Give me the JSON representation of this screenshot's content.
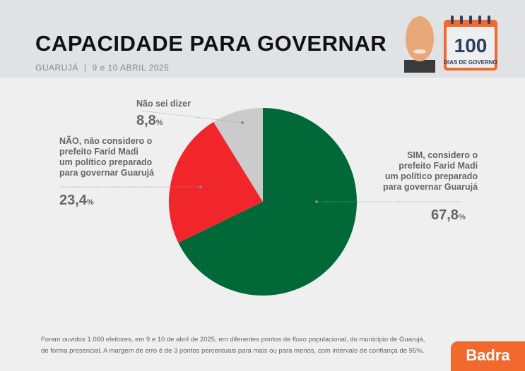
{
  "header": {
    "title": "CAPACIDADE PARA GOVERNAR",
    "location": "GUARUJÁ",
    "date": "9 e 10 ABRIL 2025",
    "badge_number": "100",
    "badge_text": "DIAS DE GOVERNO"
  },
  "chart_data": {
    "type": "pie",
    "start": "top",
    "direction": "clockwise",
    "slices": [
      {
        "label": "SIM, considero o prefeito Farid Madi um político preparado para governar Guarujá",
        "label_lines": [
          "SIM, considero o",
          "prefeito Farid Madi",
          "um político preparado",
          "para governar Guarujá"
        ],
        "value": 67.8,
        "display": "67,8",
        "color": "#006937"
      },
      {
        "label": "NÃO, não considero o prefeito Farid Madi um político preparado para governar Guarujá",
        "label_lines": [
          "NÃO, não considero o",
          "prefeito Farid Madi",
          "um político preparado",
          "para governar Guarujá"
        ],
        "value": 23.4,
        "display": "23,4",
        "color": "#f0262a"
      },
      {
        "label": "Não sei dizer",
        "label_lines": [
          "Não sei dizer"
        ],
        "value": 8.8,
        "display": "8,8",
        "color": "#cbcbcb"
      }
    ],
    "unit": "%"
  },
  "footer": {
    "note_lines": [
      "Foram ouvidos 1.060 eleitores, em 9 e 10 de abril de 2025, em diferentes pontos de fluxo populacional, do município de Guarujá,",
      "de forma presencial. A margem de erro é de 3 pontos percentuais para mais ou para menos, com intervalo de confiança de 95%."
    ],
    "logo": "Badra"
  },
  "colors": {
    "accent": "#f2692e",
    "calendar_text": "#2f3e5c"
  }
}
